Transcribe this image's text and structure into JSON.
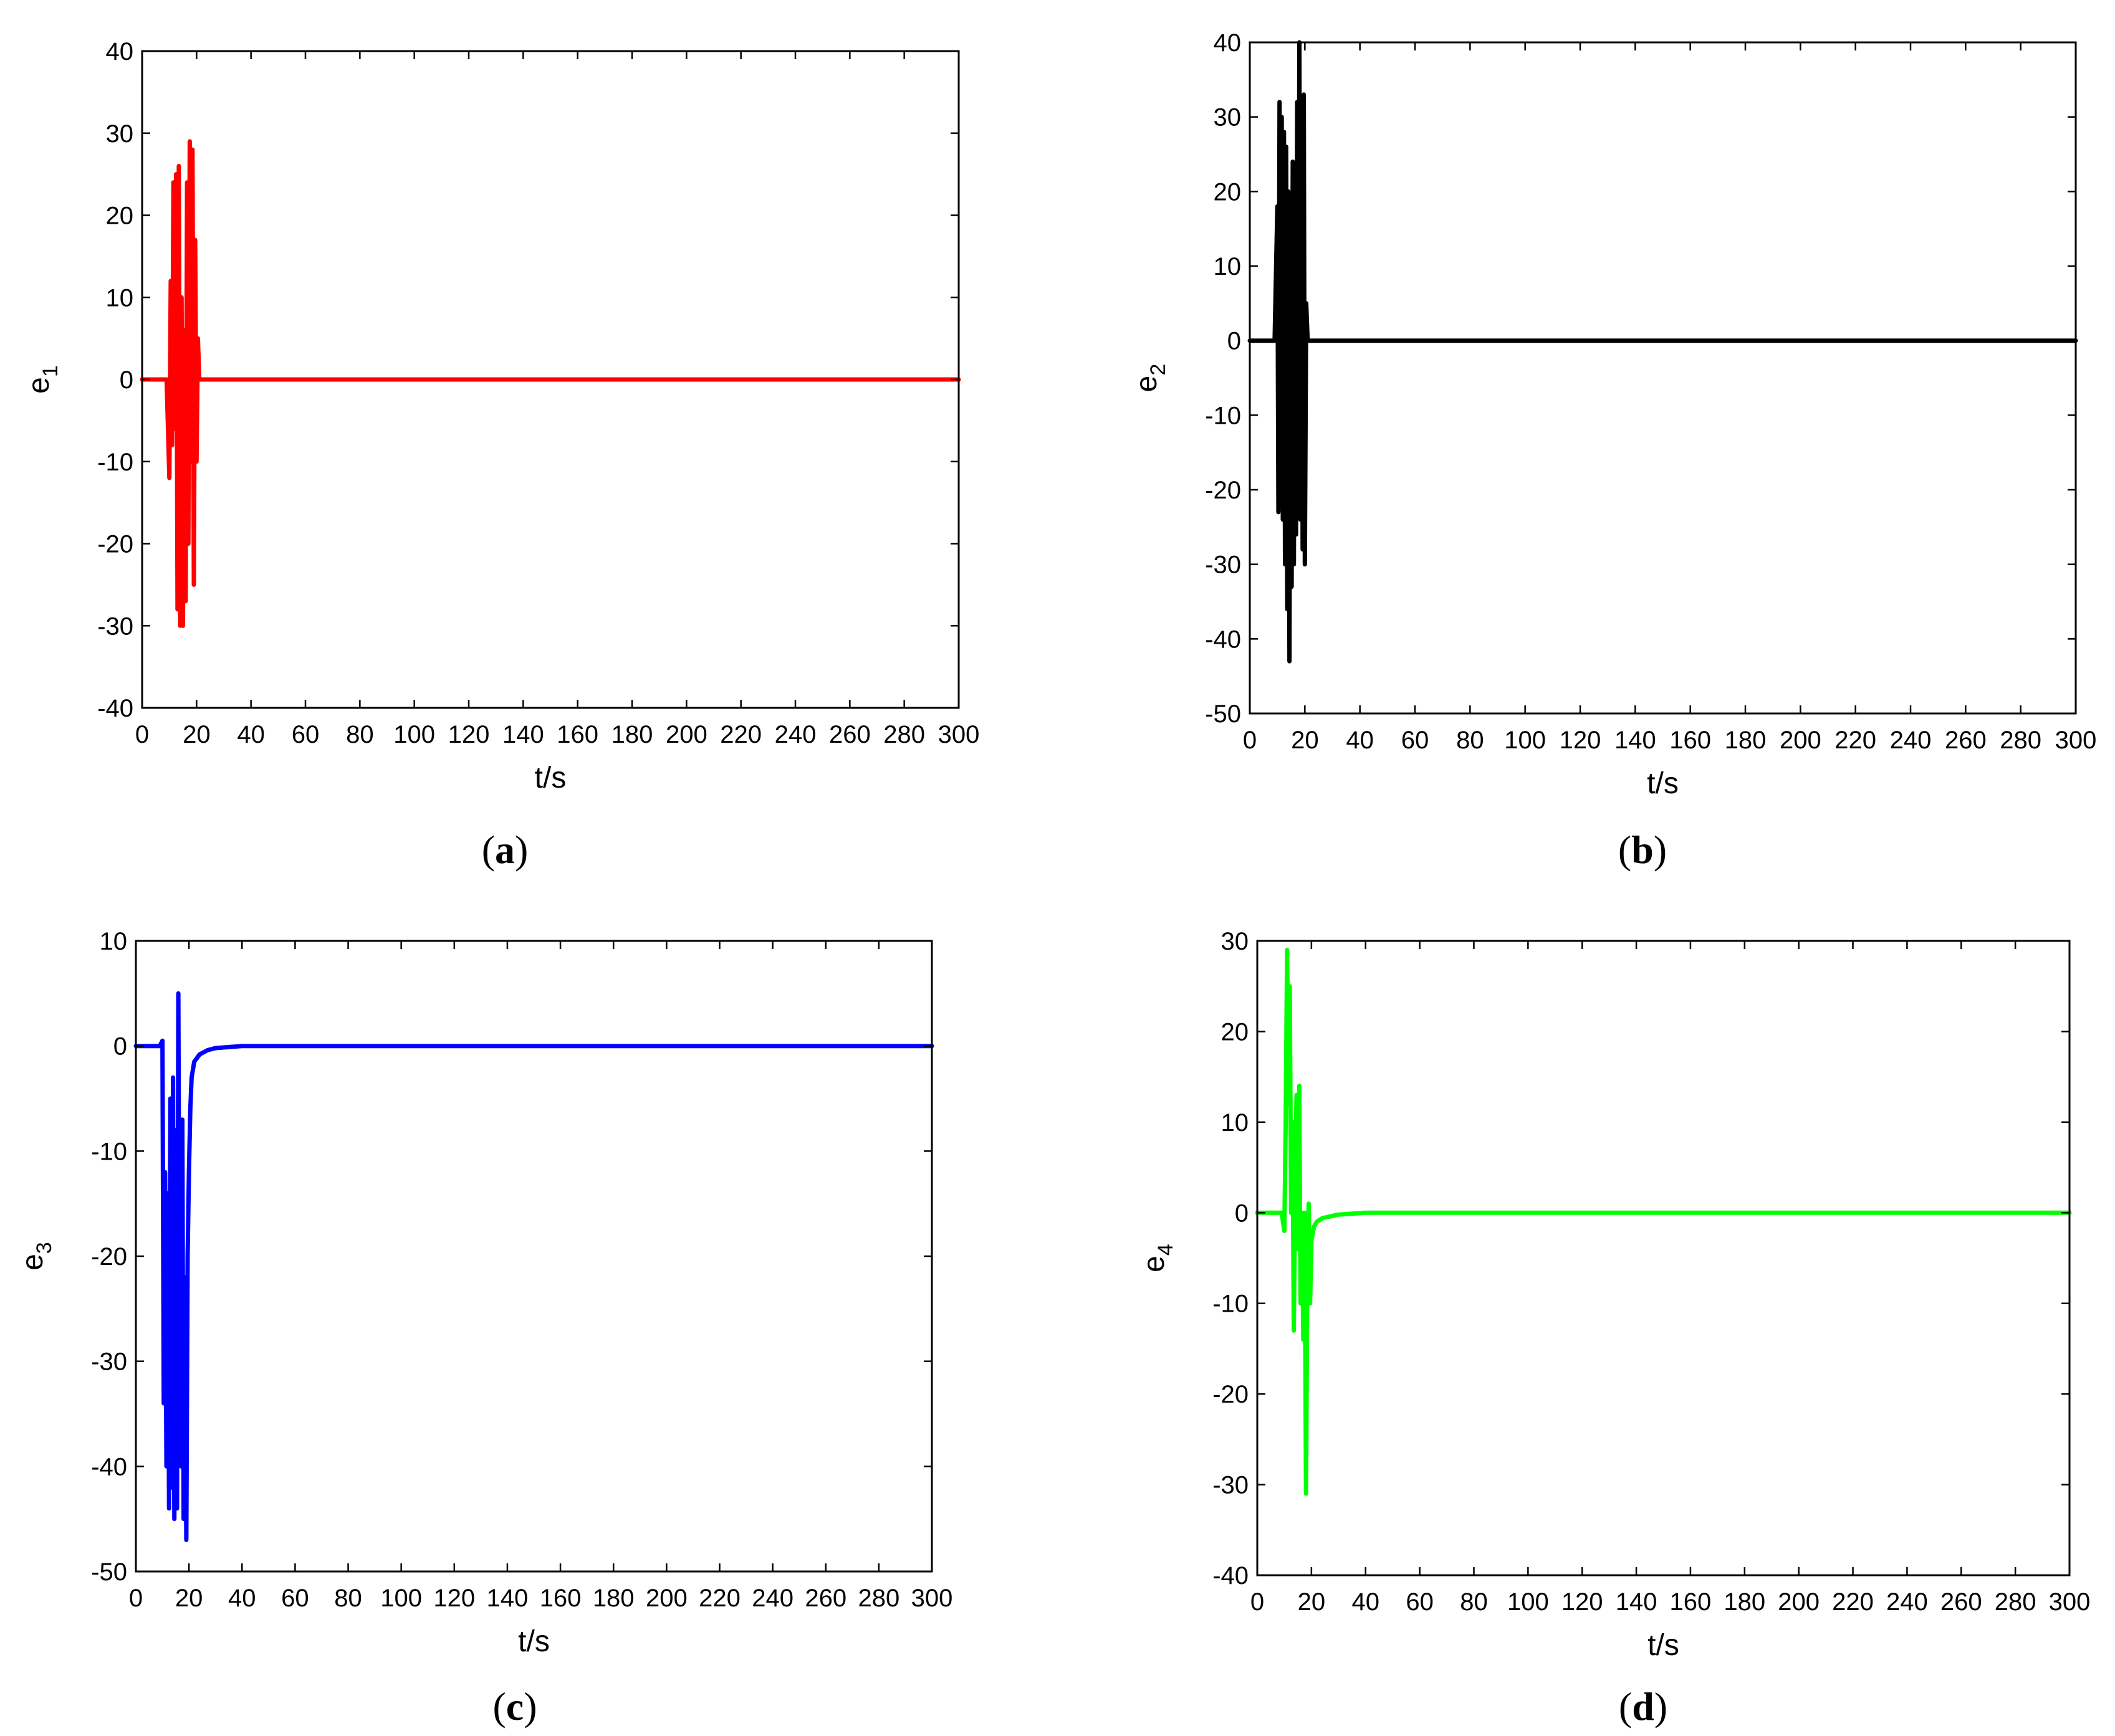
{
  "chart_data": [
    {
      "type": "line",
      "panel_label": "a",
      "xlabel": "t/s",
      "ylabel": {
        "base": "e",
        "sub": "1"
      },
      "xlim": [
        0,
        300
      ],
      "ylim": [
        -40,
        40
      ],
      "xticks": [
        0,
        20,
        40,
        60,
        80,
        100,
        120,
        140,
        160,
        180,
        200,
        220,
        240,
        260,
        280,
        300
      ],
      "yticks": [
        -40,
        -30,
        -20,
        -10,
        0,
        10,
        20,
        30,
        40
      ],
      "color": "#ff0000",
      "series": [
        {
          "x": [
            0,
            9,
            10,
            10.5,
            11,
            11.5,
            12,
            12.5,
            13,
            13.5,
            14,
            14.5,
            15,
            15.5,
            16,
            16.5,
            17,
            17.5,
            18,
            18.5,
            19,
            19.5,
            20,
            20.5,
            21,
            22,
            300
          ],
          "y": [
            0,
            0,
            -12,
            12,
            -8,
            24,
            -6,
            25,
            -28,
            26,
            -30,
            10,
            -30,
            6,
            -27,
            24,
            -20,
            29,
            -10,
            28,
            -25,
            17,
            -10,
            5,
            0,
            0,
            0
          ]
        }
      ]
    },
    {
      "type": "line",
      "panel_label": "b",
      "xlabel": "t/s",
      "ylabel": {
        "base": "e",
        "sub": "2"
      },
      "xlim": [
        0,
        300
      ],
      "ylim": [
        -50,
        40
      ],
      "xticks": [
        0,
        20,
        40,
        60,
        80,
        100,
        120,
        140,
        160,
        180,
        200,
        220,
        240,
        260,
        280,
        300
      ],
      "yticks": [
        -50,
        -40,
        -30,
        -20,
        -10,
        0,
        10,
        20,
        30,
        40
      ],
      "color": "#000000",
      "series": [
        {
          "x": [
            0,
            9,
            10,
            10.4,
            10.8,
            11.2,
            11.6,
            12,
            12.4,
            12.8,
            13.2,
            13.6,
            14,
            14.4,
            14.8,
            15.2,
            15.6,
            16,
            16.4,
            16.8,
            17.2,
            17.6,
            18,
            18.4,
            18.8,
            19.2,
            19.6,
            20,
            20.5,
            21,
            300
          ],
          "y": [
            0,
            0,
            18,
            -23,
            32,
            -22,
            30,
            -24,
            28,
            -30,
            26,
            -36,
            20,
            -43,
            18,
            -33,
            24,
            -30,
            22,
            -26,
            32,
            -20,
            40,
            -24,
            30,
            -28,
            33,
            -30,
            5,
            0,
            0
          ]
        }
      ]
    },
    {
      "type": "line",
      "panel_label": "c",
      "xlabel": "t/s",
      "ylabel": {
        "base": "e",
        "sub": "3"
      },
      "xlim": [
        0,
        300
      ],
      "ylim": [
        -50,
        10
      ],
      "xticks": [
        0,
        20,
        40,
        60,
        80,
        100,
        120,
        140,
        160,
        180,
        200,
        220,
        240,
        260,
        280,
        300
      ],
      "yticks": [
        -50,
        -40,
        -30,
        -20,
        -10,
        0,
        10
      ],
      "color": "#0000ff",
      "series": [
        {
          "x": [
            0,
            9,
            10,
            10.5,
            11,
            11.5,
            12,
            12.5,
            13,
            13.5,
            14,
            14.5,
            15,
            15.5,
            16,
            16.5,
            17,
            17.5,
            18,
            18.5,
            19,
            19.5,
            20,
            20.5,
            21,
            22,
            24,
            27,
            30,
            35,
            40,
            50,
            300
          ],
          "y": [
            0,
            0,
            0.5,
            -34,
            -12,
            -40,
            -14,
            -44,
            -5,
            -42,
            -3,
            -45,
            -8,
            -44,
            5,
            -30,
            -40,
            -7,
            -45,
            -22,
            -47,
            -20,
            -12,
            -6,
            -3,
            -1.5,
            -0.8,
            -0.4,
            -0.2,
            -0.1,
            0,
            0,
            0
          ]
        }
      ]
    },
    {
      "type": "line",
      "panel_label": "d",
      "xlabel": "t/s",
      "ylabel": {
        "base": "e",
        "sub": "4"
      },
      "xlim": [
        0,
        300
      ],
      "ylim": [
        -40,
        30
      ],
      "xticks": [
        0,
        20,
        40,
        60,
        80,
        100,
        120,
        140,
        160,
        180,
        200,
        220,
        240,
        260,
        280,
        300
      ],
      "yticks": [
        -40,
        -30,
        -20,
        -10,
        0,
        10,
        20,
        30
      ],
      "color": "#00ff00",
      "series": [
        {
          "x": [
            0,
            9,
            10,
            10.5,
            11,
            11.5,
            12,
            12.5,
            13,
            13.5,
            14,
            14.5,
            15,
            15.5,
            16,
            16.5,
            17,
            17.5,
            18,
            18.5,
            19,
            19.5,
            20,
            21,
            22,
            24,
            27,
            30,
            35,
            40,
            300
          ],
          "y": [
            0,
            0,
            -2,
            10,
            29,
            12,
            25,
            0,
            10,
            -13,
            5,
            13,
            -4,
            14,
            -10,
            0,
            -14,
            0,
            -31,
            -5,
            1,
            -10,
            -3,
            -1.5,
            -1,
            -0.6,
            -0.4,
            -0.2,
            -0.1,
            0,
            0
          ]
        }
      ]
    }
  ]
}
